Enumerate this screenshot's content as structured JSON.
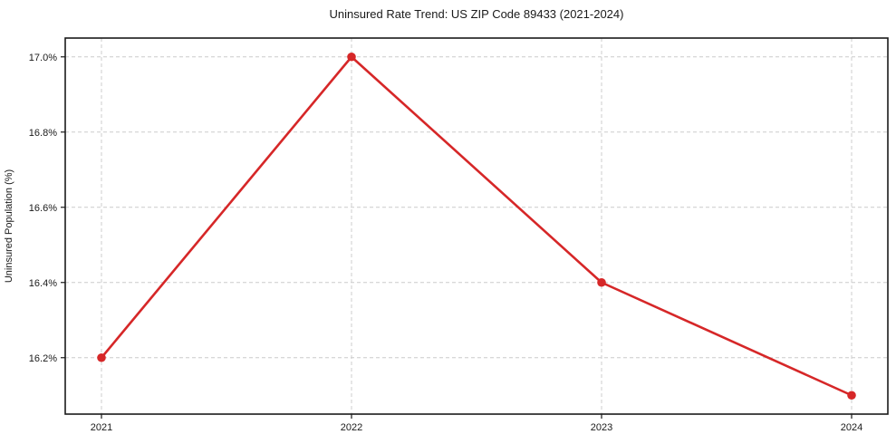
{
  "chart_data": {
    "type": "line",
    "title": "Uninsured Rate Trend: US ZIP Code 89433 (2021-2024)",
    "xlabel": "",
    "ylabel": "Uninsured Population (%)",
    "categories": [
      "2021",
      "2022",
      "2023",
      "2024"
    ],
    "series": [
      {
        "name": "Uninsured Rate",
        "values": [
          16.2,
          17.0,
          16.4,
          16.1
        ]
      }
    ],
    "yticks": [
      16.2,
      16.4,
      16.6,
      16.8,
      17.0
    ],
    "ytick_labels": [
      "16.2%",
      "16.4%",
      "16.6%",
      "16.8%",
      "17.0%"
    ],
    "ylim": [
      16.05,
      17.05
    ],
    "grid": true,
    "grid_style": "dashed",
    "legend_position": "none",
    "marker": "circle",
    "colors": {
      "line": "#d62728",
      "grid": "#cccccc",
      "spine": "#1a1a1a",
      "text": "#1a1a1a",
      "background": "#ffffff"
    }
  }
}
